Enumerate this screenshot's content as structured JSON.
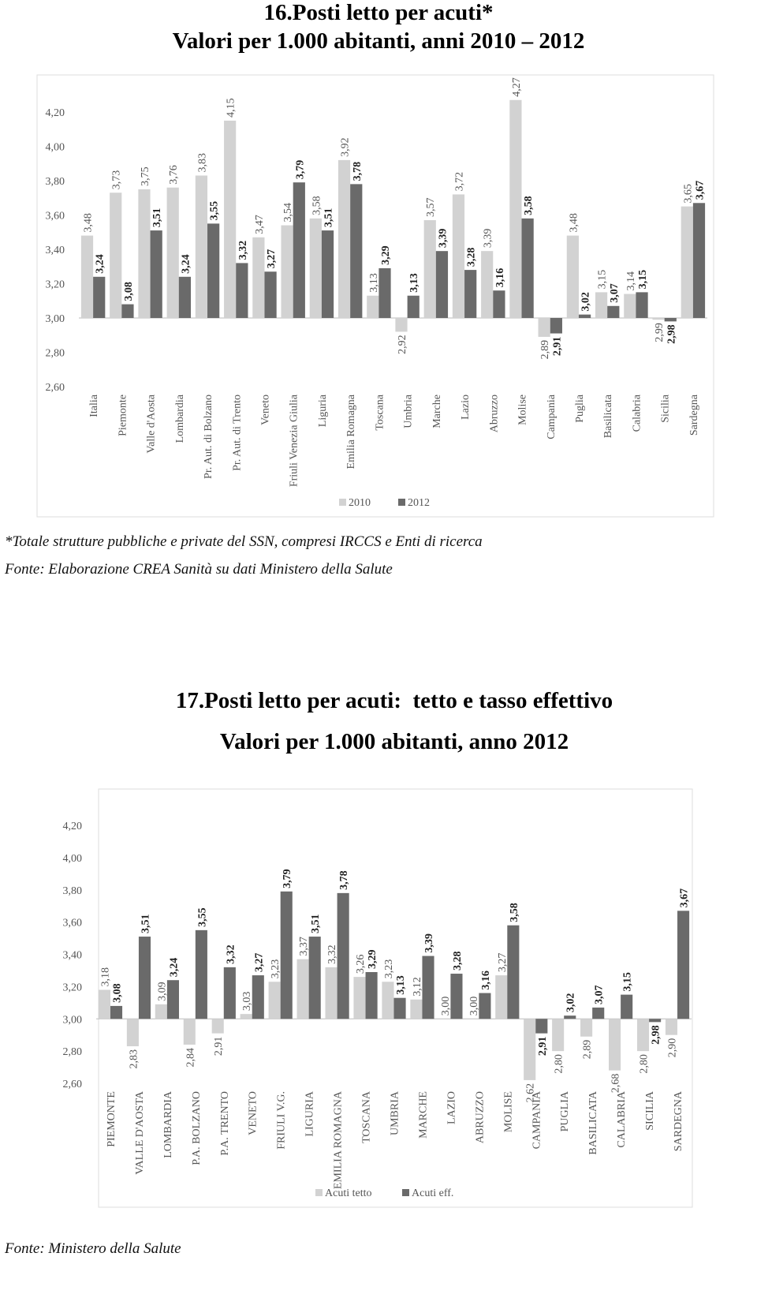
{
  "chart_data": [
    {
      "type": "bar",
      "title": "16.Posti letto per acuti*",
      "subtitle": "Valori per 1.000 abitanti, anni 2010 – 2012",
      "categories": [
        "Italia",
        "Piemonte",
        "Valle d'Aosta",
        "Lombardia",
        "Pr. Aut. di Bolzano",
        "Pr. Aut. di Trento",
        "Veneto",
        "Friuli Venezia Giulia",
        "Liguria",
        "Emilia Romagna",
        "Toscana",
        "Umbria",
        "Marche",
        "Lazio",
        "Abruzzo",
        "Molise",
        "Campania",
        "Puglia",
        "Basilicata",
        "Calabria",
        "Sicilia",
        "Sardegna"
      ],
      "series": [
        {
          "name": "2010",
          "color": "#d2d2d2",
          "values": [
            3.48,
            3.73,
            3.75,
            3.76,
            3.83,
            4.15,
            3.47,
            3.54,
            3.58,
            3.92,
            3.13,
            2.92,
            3.57,
            3.72,
            3.39,
            4.27,
            2.89,
            3.48,
            3.15,
            3.14,
            2.99,
            3.65
          ],
          "value_labels": [
            "3,48",
            "3,73",
            "3,75",
            "3,76",
            "3,83",
            "4,15",
            "3,47",
            "3,54",
            "3,58",
            "3,92",
            "3,13",
            "2,92",
            "3,57",
            "3,72",
            "3,39",
            "4,27",
            "2,89",
            "3,48",
            "3,15",
            "3,14",
            "2,99",
            "3,65"
          ]
        },
        {
          "name": "2012",
          "color": "#6a6a6a",
          "values": [
            3.24,
            3.08,
            3.51,
            3.24,
            3.55,
            3.32,
            3.27,
            3.79,
            3.51,
            3.78,
            3.29,
            3.13,
            3.39,
            3.28,
            3.16,
            3.58,
            2.91,
            3.02,
            3.07,
            3.15,
            2.98,
            3.67
          ],
          "value_labels": [
            "3,24",
            "3,08",
            "3,51",
            "3,24",
            "3,55",
            "3,32",
            "3,27",
            "3,79",
            "3,51",
            "3,78",
            "3,29",
            "3,13",
            "3,39",
            "3,28",
            "3,16",
            "3,58",
            "2,91",
            "3,02",
            "3,07",
            "3,15",
            "2,98",
            "3,67"
          ]
        }
      ],
      "ylim": [
        2.6,
        4.4
      ],
      "base": 3,
      "yticks": [
        {
          "value": 2.6,
          "label": "2,60"
        },
        {
          "value": 2.8,
          "label": "2,80"
        },
        {
          "value": 3,
          "label": "3,00"
        },
        {
          "value": 3.2,
          "label": "3,20"
        },
        {
          "value": 3.4,
          "label": "3,40"
        },
        {
          "value": 3.6,
          "label": "3,60"
        },
        {
          "value": 3.8,
          "label": "3,80"
        },
        {
          "value": 4,
          "label": "4,00"
        },
        {
          "value": 4.2,
          "label": "4,20"
        }
      ],
      "grid": false,
      "legend": "bottom"
    },
    {
      "type": "bar",
      "title": "17.Posti letto per acuti:  tetto e tasso effettivo",
      "subtitle": "Valori per 1.000 abitanti, anno 2012",
      "categories": [
        "PIEMONTE",
        "VALLE D'AOSTA",
        "LOMBARDIA",
        "P.A. BOLZANO",
        "P.A. TRENTO",
        "VENETO",
        "FRIULI V.G.",
        "LIGURIA",
        "EMILIA ROMAGNA",
        "TOSCANA",
        "UMBRIA",
        "MARCHE",
        "LAZIO",
        "ABRUZZO",
        "MOLISE",
        "CAMPANIA",
        "PUGLIA",
        "BASILICATA",
        "CALABRIA",
        "SICILIA",
        "SARDEGNA"
      ],
      "series": [
        {
          "name": "Acuti tetto",
          "color": "#d2d2d2",
          "values": [
            3.18,
            2.83,
            3.09,
            2.84,
            2.91,
            3.03,
            3.23,
            3.37,
            3.32,
            3.26,
            3.23,
            3.12,
            3.0,
            3.0,
            3.27,
            2.62,
            2.8,
            2.89,
            2.68,
            2.8,
            2.9
          ],
          "value_labels": [
            "3,18",
            "2,83",
            "3,09",
            "2,84",
            "2,91",
            "3,03",
            "3,23",
            "3,37",
            "3,32",
            "3,26",
            "3,23",
            "3,12",
            "3,00",
            "3,00",
            "3,27",
            "2,62",
            "2,80",
            "2,89",
            "2,68",
            "2,80",
            "2,90"
          ]
        },
        {
          "name": "Acuti eff.",
          "color": "#6a6a6a",
          "values": [
            3.08,
            3.51,
            3.24,
            3.55,
            3.32,
            3.27,
            3.79,
            3.51,
            3.78,
            3.29,
            3.13,
            3.39,
            3.28,
            3.16,
            3.58,
            2.91,
            3.02,
            3.07,
            3.15,
            2.98,
            3.67
          ],
          "value_labels": [
            "3,08",
            "3,51",
            "3,24",
            "3,55",
            "3,32",
            "3,27",
            "3,79",
            "3,51",
            "3,78",
            "3,29",
            "3,13",
            "3,39",
            "3,28",
            "3,16",
            "3,58",
            "2,91",
            "3,02",
            "3,07",
            "3,15",
            "2,98",
            "3,67"
          ]
        }
      ],
      "ylim": [
        2.6,
        4.3
      ],
      "base": 3,
      "yticks": [
        {
          "value": 2.6,
          "label": "2,60"
        },
        {
          "value": 2.8,
          "label": "2,80"
        },
        {
          "value": 3,
          "label": "3,00"
        },
        {
          "value": 3.2,
          "label": "3,20"
        },
        {
          "value": 3.4,
          "label": "3,40"
        },
        {
          "value": 3.6,
          "label": "3,60"
        },
        {
          "value": 3.8,
          "label": "3,80"
        },
        {
          "value": 4,
          "label": "4,00"
        },
        {
          "value": 4.2,
          "label": "4,20"
        }
      ],
      "grid": false,
      "legend": "bottom"
    }
  ],
  "notes": {
    "footnote": "*Totale strutture pubbliche e private del SSN, compresi IRCCS e Enti di ricerca",
    "source1": "Fonte: Elaborazione CREA Sanità su dati Ministero della Salute",
    "source2": "Fonte: Ministero della Salute"
  }
}
